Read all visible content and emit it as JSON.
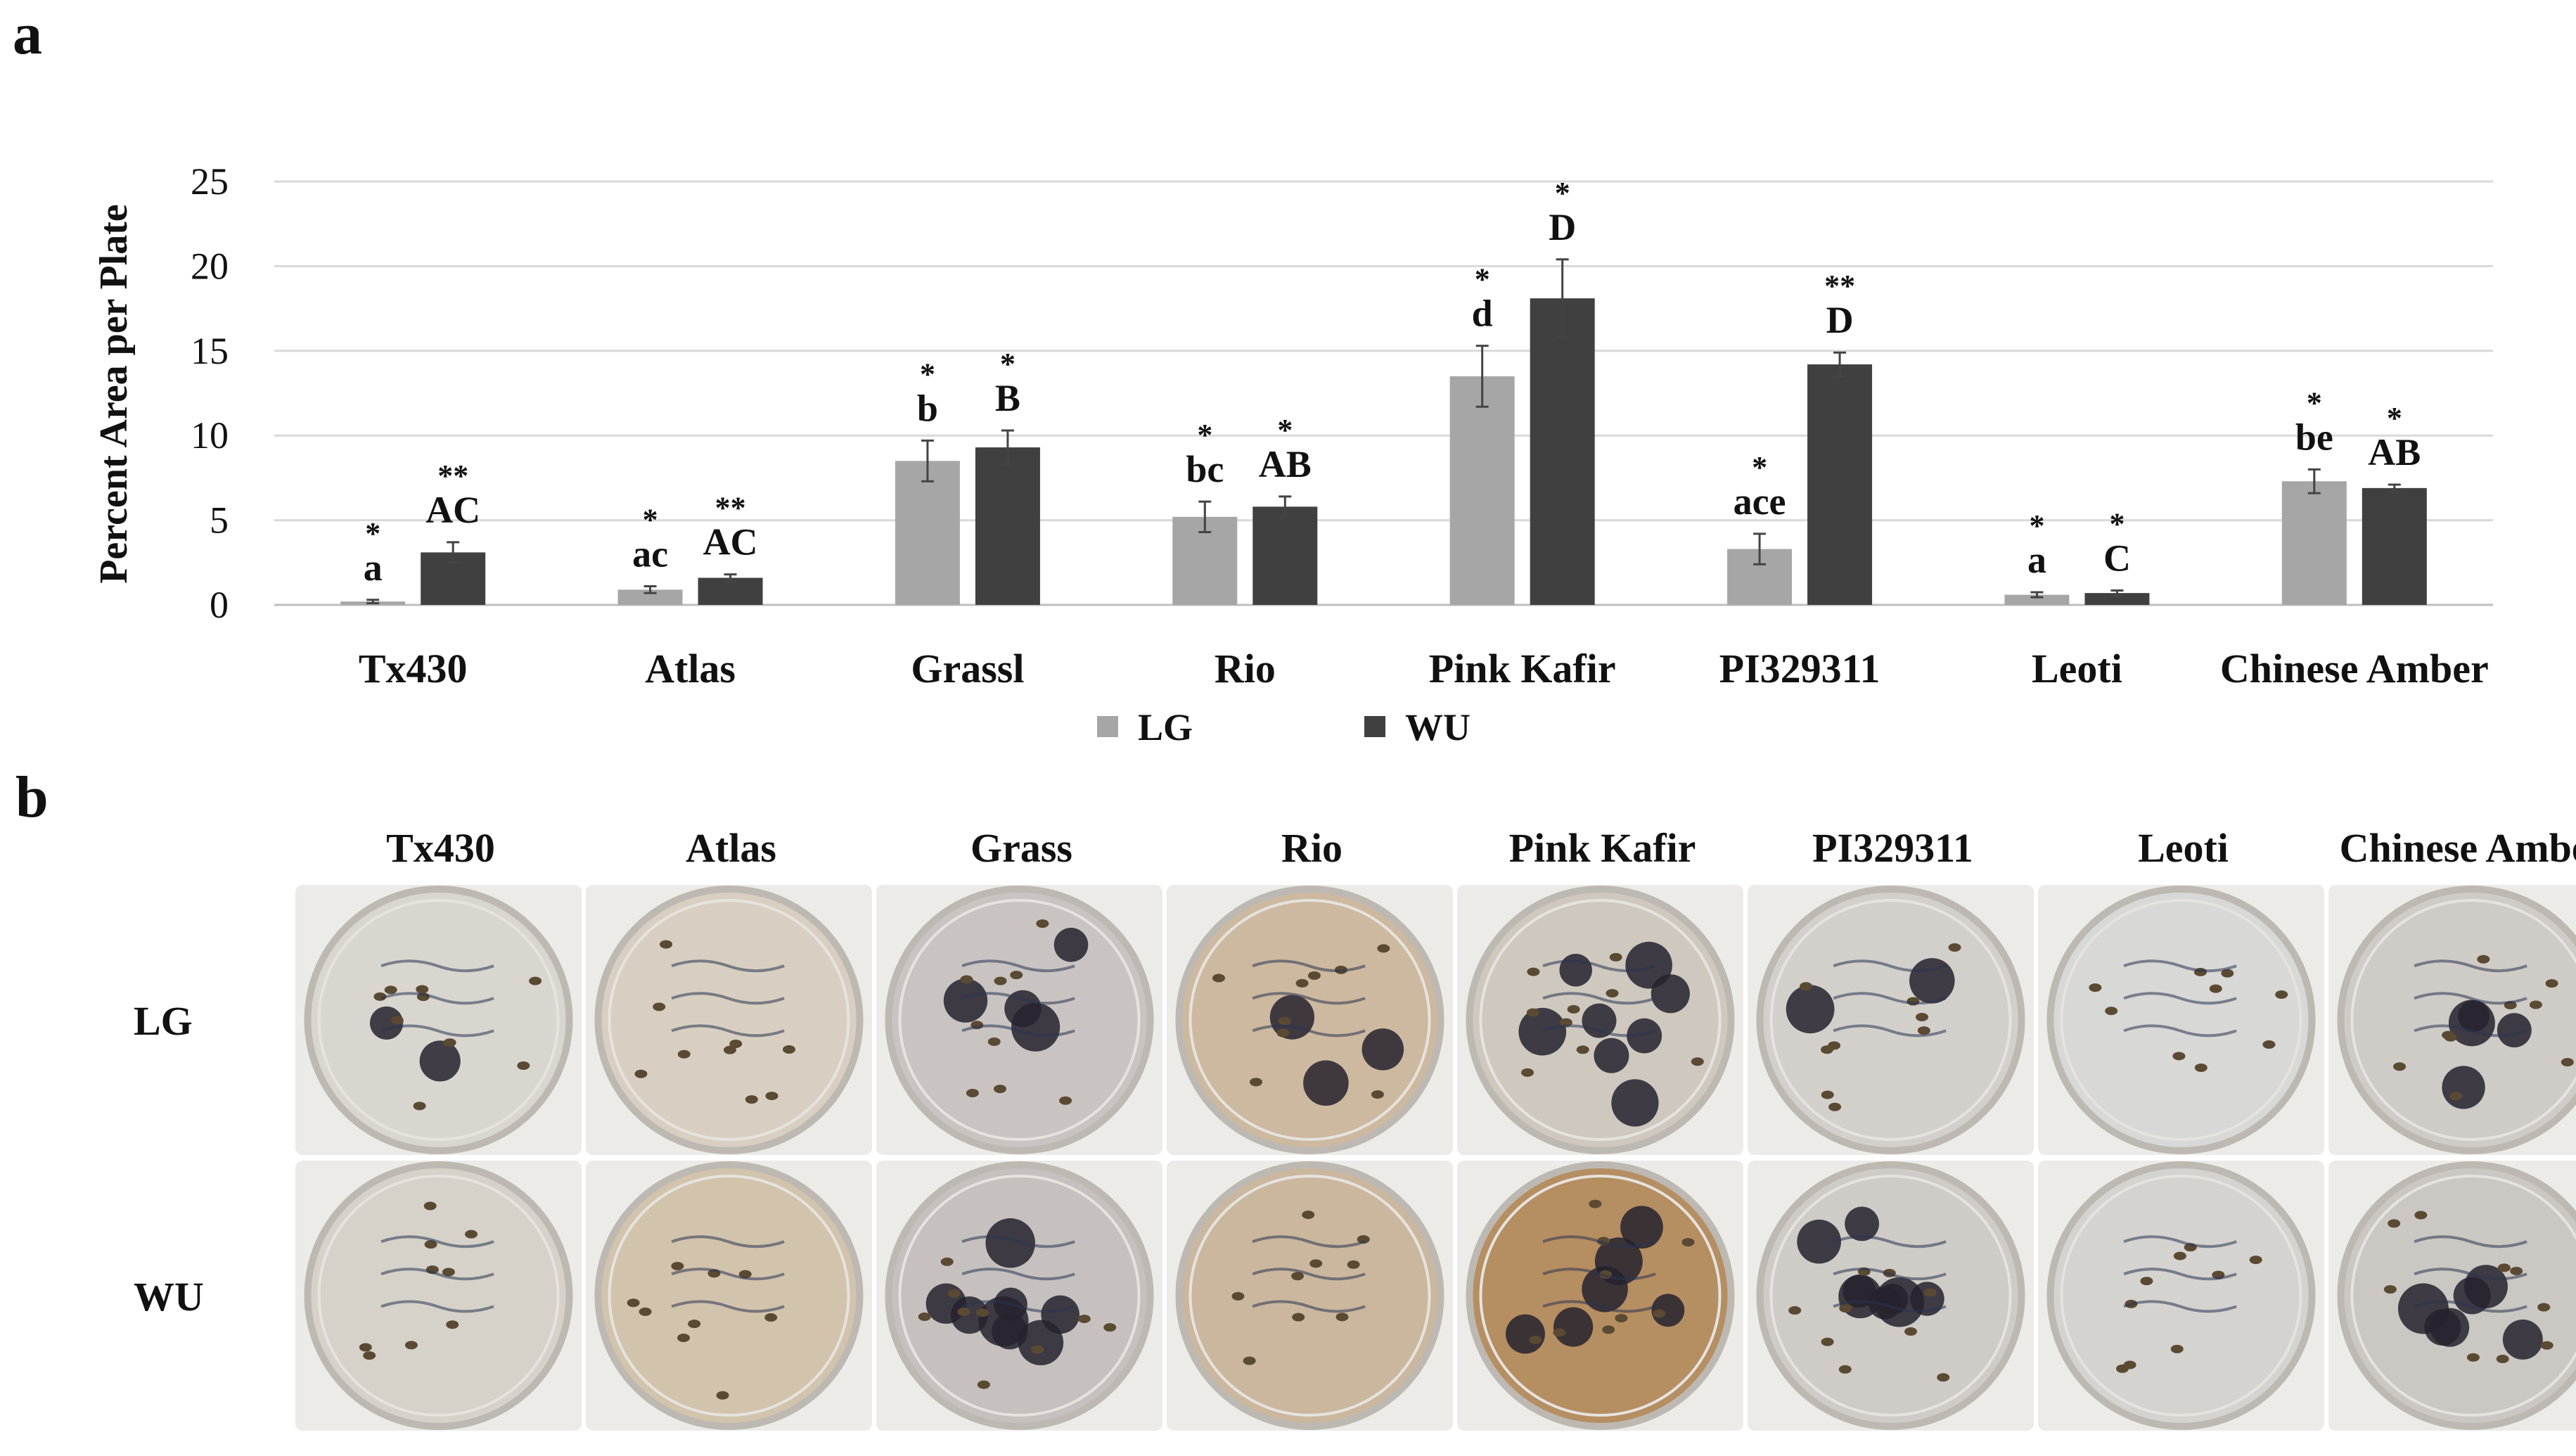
{
  "panel_a_label": "a",
  "panel_b_label": "b",
  "colors": {
    "LG": "#a6a6a6",
    "WU": "#404040",
    "grid": "#d9d9d9"
  },
  "chart_data": {
    "type": "bar",
    "ylabel": "Percent Area per Plate",
    "ylim": [
      0,
      25
    ],
    "yticks": [
      0,
      5,
      10,
      15,
      20,
      25
    ],
    "grid": true,
    "legend_position": "bottom",
    "categories": [
      "Tx430",
      "Atlas",
      "Grassl",
      "Rio",
      "Pink Kafir",
      "PI329311",
      "Leoti",
      "Chinese Amber"
    ],
    "series": [
      {
        "name": "LG",
        "color": "#a6a6a6",
        "values": [
          0.2,
          0.9,
          8.5,
          5.2,
          13.5,
          3.3,
          0.6,
          7.3
        ],
        "errors": [
          0.1,
          0.2,
          1.2,
          0.9,
          1.8,
          0.9,
          0.15,
          0.7
        ],
        "stars": [
          "*",
          "*",
          "*",
          "*",
          "*",
          "*",
          "*",
          "*"
        ],
        "letters": [
          "a",
          "ac",
          "b",
          "bc",
          "d",
          "ace",
          "a",
          "be"
        ]
      },
      {
        "name": "WU",
        "color": "#404040",
        "values": [
          3.1,
          1.6,
          9.3,
          5.8,
          18.1,
          14.2,
          0.7,
          6.9
        ],
        "errors": [
          0.6,
          0.2,
          1.0,
          0.6,
          2.3,
          0.7,
          0.15,
          0.2
        ],
        "stars": [
          "**",
          "**",
          "*",
          "*",
          "*",
          "**",
          "*",
          "*"
        ],
        "letters": [
          "AC",
          "AC",
          "B",
          "AB",
          "D",
          "D",
          "C",
          "AB"
        ]
      }
    ]
  },
  "panel_b": {
    "columns": [
      "Tx430",
      "Atlas",
      "Grass",
      "Rio",
      "Pink Kafir",
      "PI329311",
      "Leoti",
      "Chinese Amber"
    ],
    "rows": [
      "LG",
      "WU"
    ]
  }
}
